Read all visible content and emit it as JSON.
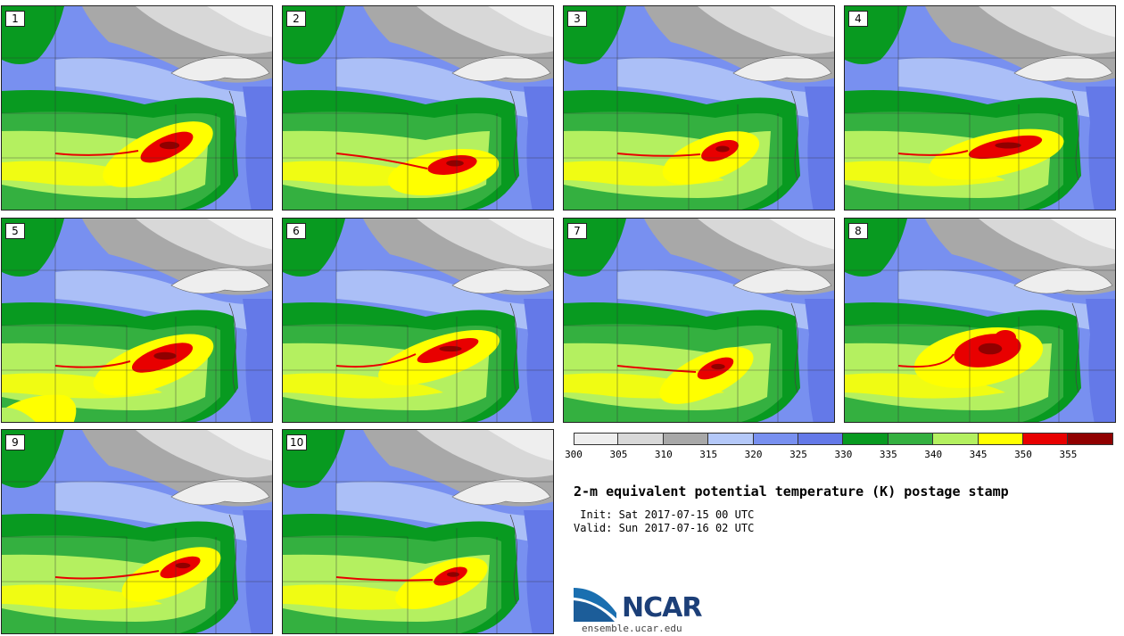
{
  "panels": [
    {
      "label": "1"
    },
    {
      "label": "2"
    },
    {
      "label": "3"
    },
    {
      "label": "4"
    },
    {
      "label": "5"
    },
    {
      "label": "6"
    },
    {
      "label": "7"
    },
    {
      "label": "8"
    },
    {
      "label": "9"
    },
    {
      "label": "10"
    }
  ],
  "colorbar": {
    "ticks": [
      "300",
      "305",
      "310",
      "315",
      "320",
      "325",
      "330",
      "335",
      "340",
      "345",
      "350",
      "355"
    ],
    "colors": [
      "#eeeeee",
      "#d8d8d8",
      "#a8a8a8",
      "#b4c8f8",
      "#7890f0",
      "#6479e8",
      "#089a20",
      "#34b040",
      "#b4f060",
      "#ffff00",
      "#e80000",
      "#900000"
    ]
  },
  "title": "2-m equivalent potential temperature (K) postage stamp",
  "init": " Init: Sat 2017-07-15 00 UTC",
  "valid": "Valid: Sun 2017-07-16 02 UTC",
  "logo": {
    "name": "NCAR",
    "url": "ensemble.ucar.edu"
  }
}
